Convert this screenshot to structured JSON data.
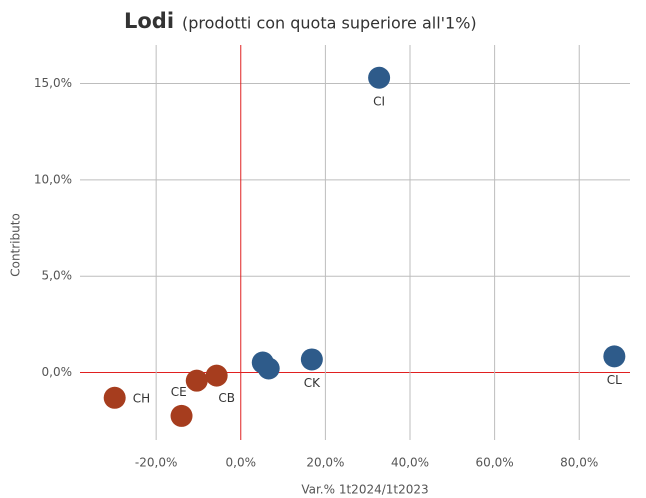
{
  "chart_data": {
    "type": "scatter",
    "title": "Lodi",
    "subtitle": "(prodotti con quota superiore all'1%)",
    "x_label": "Var.% 1t2024/1t2023",
    "y_label": "Contributo",
    "x": [
      32.7,
      88.3,
      16.8,
      5.2,
      6.6,
      -29.8,
      -10.4,
      -14.0,
      -5.7
    ],
    "y": [
      15.3,
      0.84,
      0.68,
      0.52,
      0.21,
      -1.31,
      -0.42,
      -2.25,
      -0.16
    ],
    "labels": [
      "CI",
      "CL",
      "CK",
      null,
      null,
      "CH",
      "CE",
      null,
      "CB"
    ],
    "colors": [
      "#2e5b8a",
      "#2e5b8a",
      "#2e5b8a",
      "#2e5b8a",
      "#2e5b8a",
      "#a63d1e",
      "#a63d1e",
      "#a63d1e",
      "#a63d1e"
    ],
    "xlim": [
      -38,
      92
    ],
    "ylim": [
      -3.5,
      17
    ],
    "xticks": [
      {
        "value": -20,
        "label": "-20,0%"
      },
      {
        "value": 0,
        "label": "0,0%"
      },
      {
        "value": 20,
        "label": "20,0%"
      },
      {
        "value": 40,
        "label": "40,0%"
      },
      {
        "value": 60,
        "label": "60,0%"
      },
      {
        "value": 80,
        "label": "80,0%"
      }
    ],
    "yticks": [
      {
        "value": 0,
        "label": "0,0%"
      },
      {
        "value": 5,
        "label": "5,0%"
      },
      {
        "value": 10,
        "label": "10,0%"
      },
      {
        "value": 15,
        "label": "15,0%"
      }
    ],
    "grid": true,
    "zero_line_color": "#e02020"
  }
}
